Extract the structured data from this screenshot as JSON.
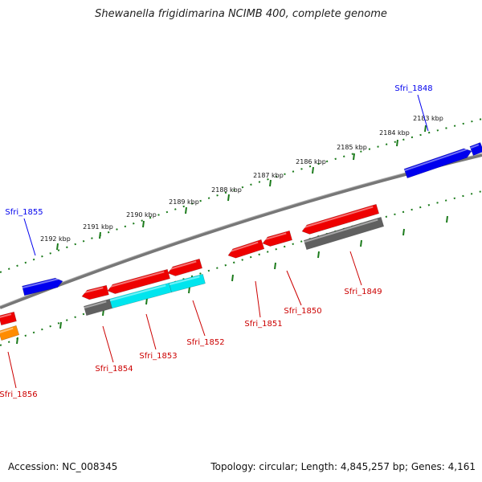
{
  "title": "Shewanella frigidimarina NCIMB 400, complete genome",
  "footer": {
    "accession": "Accession: NC_008345",
    "topology": "Topology: circular; Length: 4,845,257 bp; Genes: 4,161"
  },
  "colors": {
    "forward_gene": "#0000ee",
    "reverse_gene": "#ee0000",
    "gray_gene": "#606060",
    "cyan_gene": "#00e5ee",
    "orange_gene": "#ff8c00",
    "backbone": "#808080",
    "tick": "#1a7a1a"
  },
  "ticks": [
    {
      "label": "2183 kbp"
    },
    {
      "label": "2184 kbp"
    },
    {
      "label": "2185 kbp"
    },
    {
      "label": "2186 kbp"
    },
    {
      "label": "2187 kbp"
    },
    {
      "label": "2188 kbp"
    },
    {
      "label": "2189 kbp"
    },
    {
      "label": "2190 kbp"
    },
    {
      "label": "2191 kbp"
    },
    {
      "label": "2192 kbp"
    }
  ],
  "gene_labels": [
    {
      "name": "Sfri_1848",
      "strand": "forward"
    },
    {
      "name": "Sfri_1855",
      "strand": "forward"
    },
    {
      "name": "Sfri_1849",
      "strand": "reverse"
    },
    {
      "name": "Sfri_1850",
      "strand": "reverse"
    },
    {
      "name": "Sfri_1851",
      "strand": "reverse"
    },
    {
      "name": "Sfri_1852",
      "strand": "reverse"
    },
    {
      "name": "Sfri_1853",
      "strand": "reverse"
    },
    {
      "name": "Sfri_1854",
      "strand": "reverse"
    },
    {
      "name": "Sfri_1856",
      "strand": "reverse"
    }
  ]
}
